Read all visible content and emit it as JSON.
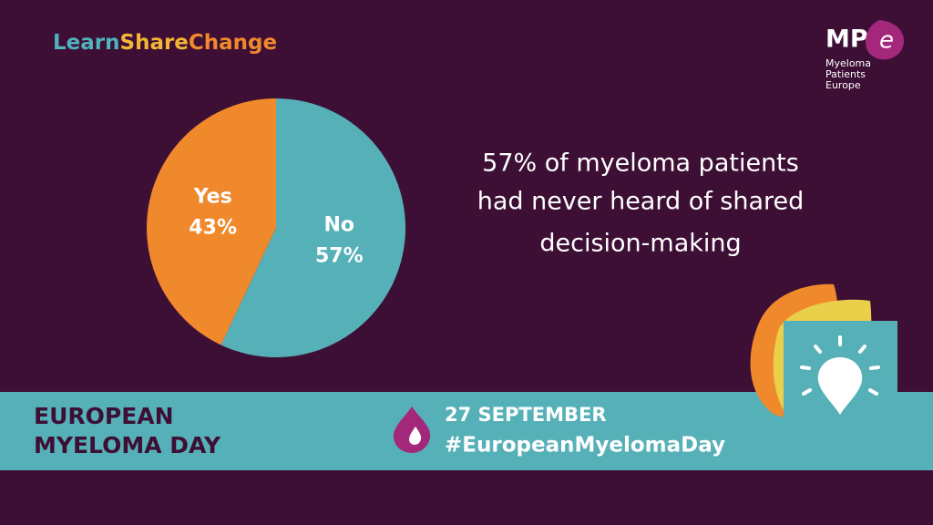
{
  "brand": {
    "parts": [
      "Learn",
      "Share",
      "Change"
    ],
    "colors": [
      "#4fb3bd",
      "#f2b634",
      "#f0892b"
    ]
  },
  "logo": {
    "mark": "MP",
    "accent": "e",
    "lines": [
      "Myeloma",
      "Patients",
      "Europe"
    ]
  },
  "chart_data": {
    "type": "pie",
    "categories": [
      "No",
      "Yes"
    ],
    "values": [
      57,
      43
    ],
    "value_labels": [
      "57%",
      "43%"
    ],
    "colors": [
      "#56b0b8",
      "#f0892b"
    ],
    "annotation": [
      "57% of myeloma patients",
      "had never heard of shared",
      "decision-making"
    ]
  },
  "footer": {
    "event": [
      "EUROPEAN",
      "MYELOMA DAY"
    ],
    "date": "27 SEPTEMBER",
    "hashtag": "#EuropeanMyelomaDay"
  }
}
